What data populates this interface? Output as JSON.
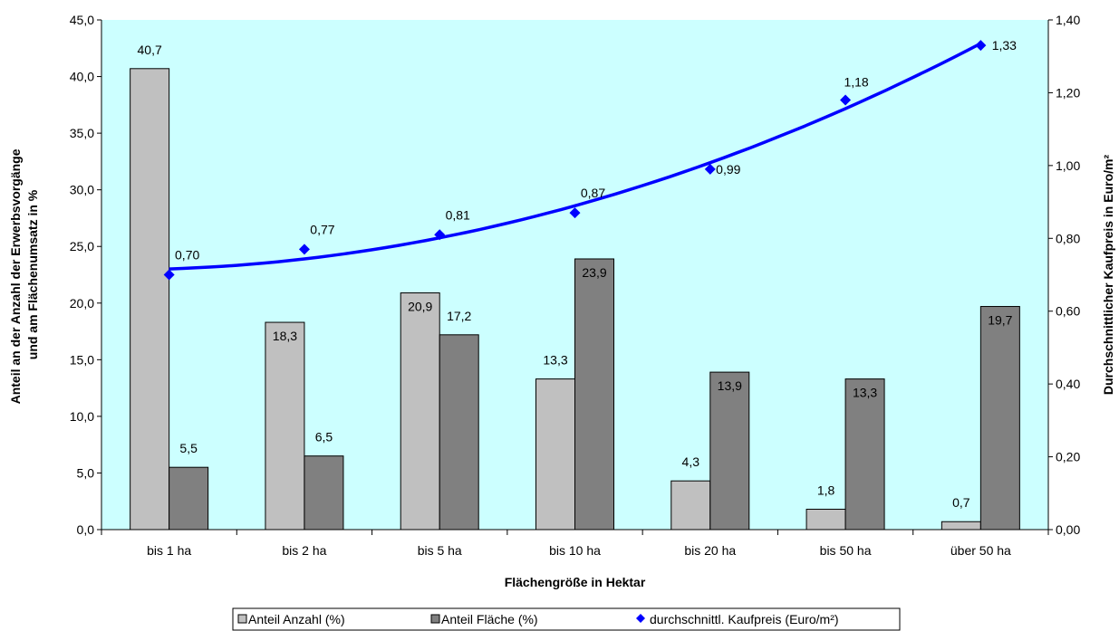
{
  "chart_data": {
    "type": "bar",
    "title": "",
    "categories": [
      "bis 1 ha",
      "bis 2 ha",
      "bis 5 ha",
      "bis 10 ha",
      "bis 20 ha",
      "bis 50 ha",
      "über 50 ha"
    ],
    "series": [
      {
        "name": "Anteil Anzahl (%)",
        "type": "bar",
        "axis": "left",
        "values": [
          40.7,
          18.3,
          20.9,
          13.3,
          4.3,
          1.8,
          0.7
        ],
        "labels": [
          "40,7",
          "18,3",
          "20,9",
          "13,3",
          "4,3",
          "1,8",
          "0,7"
        ],
        "color": "#c0c0c0"
      },
      {
        "name": "Anteil Fläche (%)",
        "type": "bar",
        "axis": "left",
        "values": [
          5.5,
          6.5,
          17.2,
          23.9,
          13.9,
          13.3,
          19.7
        ],
        "labels": [
          "5,5",
          "6,5",
          "17,2",
          "23,9",
          "13,9",
          "13,3",
          "19,7"
        ],
        "color": "#808080"
      },
      {
        "name": "durchschnittl. Kaufpreis (Euro/m²)",
        "type": "scatter",
        "axis": "right",
        "values": [
          0.7,
          0.77,
          0.81,
          0.87,
          0.99,
          1.18,
          1.33
        ],
        "labels": [
          "0,70",
          "0,77",
          "0,81",
          "0,87",
          "0,99",
          "1,18",
          "1,33"
        ],
        "color": "#0000ff"
      }
    ],
    "trendline": {
      "series": "durchschnittl. Kaufpreis (Euro/m²)",
      "color": "#0000ff"
    },
    "xlabel": "Flächengröße in Hektar",
    "ylabel": "Anteil an der Anzahl der Erwerbsvorgänge und am Flächenumsatz in %",
    "ylabel_lines": [
      "Anteil an der Anzahl der Erwerbsvorgänge",
      "und am Flächenumsatz in %"
    ],
    "y2label": "Durchschnittlicher Kaufpreis in Euro/m²",
    "ylim": [
      0,
      45
    ],
    "y2lim": [
      0,
      1.4
    ],
    "yticks": [
      "0,0",
      "5,0",
      "10,0",
      "15,0",
      "20,0",
      "25,0",
      "30,0",
      "35,0",
      "40,0",
      "45,0"
    ],
    "y2ticks": [
      "0,00",
      "0,20",
      "0,40",
      "0,60",
      "0,80",
      "1,00",
      "1,20",
      "1,40"
    ],
    "plot_background": "#ccffff",
    "grid": false,
    "legend_position": "bottom"
  }
}
